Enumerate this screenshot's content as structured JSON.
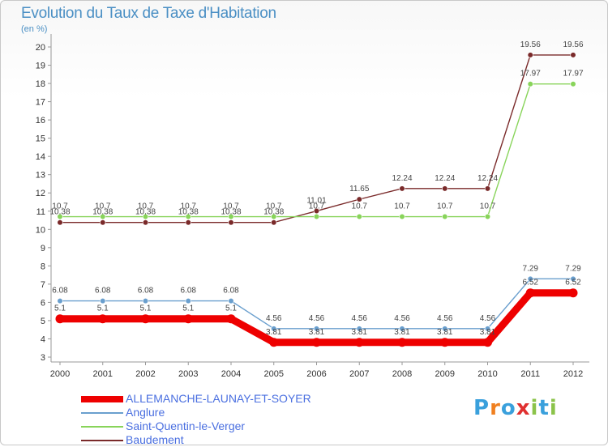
{
  "title": "Evolution du Taux de Taxe d'Habitation",
  "unit_label": "(en %)",
  "logo": {
    "text": "Proxiti",
    "letters": [
      "P",
      "r",
      "o",
      "x",
      "i",
      "t",
      "i"
    ],
    "colors": [
      "#3aa0dc",
      "#f08020",
      "#3aa0dc",
      "#e03030",
      "#8bc34a",
      "#3aa0dc",
      "#8bc34a"
    ]
  },
  "chart_data": {
    "type": "line",
    "title": "Evolution du Taux de Taxe d'Habitation",
    "ylabel": "(en %)",
    "x": [
      "2000",
      "2001",
      "2002",
      "2003",
      "2004",
      "2005",
      "2006",
      "2007",
      "2008",
      "2009",
      "2010",
      "2011",
      "2012"
    ],
    "ylim": [
      3,
      20
    ],
    "yticks": [
      3,
      4,
      5,
      6,
      7,
      8,
      9,
      10,
      11,
      12,
      13,
      14,
      15,
      16,
      17,
      18,
      19,
      20
    ],
    "grid": false,
    "legend_position": "bottom-left",
    "series": [
      {
        "name": "ALLEMANCHE-LAUNAY-ET-SOYER",
        "color": "#ee0000",
        "values": [
          5.1,
          5.1,
          5.1,
          5.1,
          5.1,
          3.81,
          3.81,
          3.81,
          3.81,
          3.81,
          3.81,
          6.52,
          6.52
        ],
        "labels": [
          "5.1",
          "5.1",
          "5.1",
          "5.1",
          "5.1",
          "3.81",
          "3.81",
          "3.81",
          "3.81",
          "3.81",
          "3.81",
          "6.52",
          "6.52"
        ]
      },
      {
        "name": "Anglure",
        "color": "#6a9fce",
        "values": [
          6.08,
          6.08,
          6.08,
          6.08,
          6.08,
          4.56,
          4.56,
          4.56,
          4.56,
          4.56,
          4.56,
          7.29,
          7.29
        ],
        "labels": [
          "6.08",
          "6.08",
          "6.08",
          "6.08",
          "6.08",
          "4.56",
          "4.56",
          "4.56",
          "4.56",
          "4.56",
          "4.56",
          "7.29",
          "7.29"
        ]
      },
      {
        "name": "Saint-Quentin-le-Verger",
        "color": "#88d45a",
        "values": [
          10.7,
          10.7,
          10.7,
          10.7,
          10.7,
          10.7,
          10.7,
          10.7,
          10.7,
          10.7,
          10.7,
          17.97,
          17.97
        ],
        "labels": [
          "10.7",
          "10.7",
          "10.7",
          "10.7",
          "10.7",
          "10.7",
          "10.7",
          "10.7",
          "10.7",
          "10.7",
          "10.7",
          "17.97",
          "17.97"
        ]
      },
      {
        "name": "Baudement",
        "color": "#7a2a2a",
        "values": [
          10.38,
          10.38,
          10.38,
          10.38,
          10.38,
          10.38,
          11.01,
          11.65,
          12.24,
          12.24,
          12.24,
          19.56,
          19.56
        ],
        "labels": [
          "10.38",
          "10.38",
          "10.38",
          "10.38",
          "10.38",
          "10.38",
          "11.01",
          "11.65",
          "12.24",
          "12.24",
          "12.24",
          "19.56",
          "19.56"
        ]
      }
    ]
  }
}
